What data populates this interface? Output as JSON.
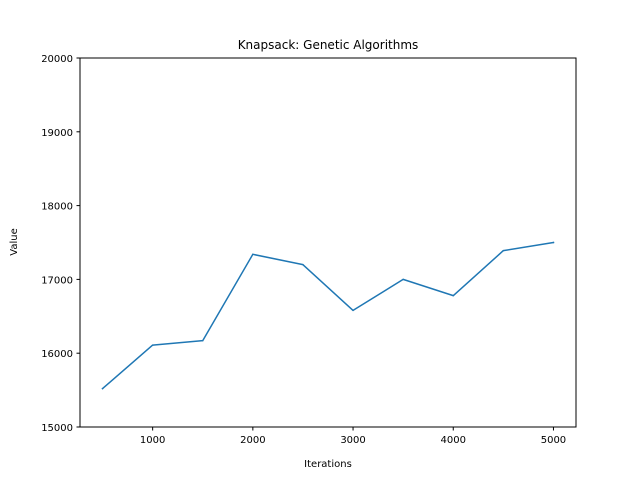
{
  "chart_data": {
    "type": "line",
    "title": "Knapsack: Genetic Algorithms",
    "xlabel": "Iterations",
    "ylabel": "Value",
    "x": [
      500,
      1000,
      1500,
      2000,
      2500,
      3000,
      3500,
      4000,
      4500,
      5000
    ],
    "series": [
      {
        "values": [
          15520,
          16110,
          16170,
          17340,
          17200,
          16580,
          17000,
          16780,
          17390,
          17500
        ],
        "color": "#1f77b4"
      }
    ],
    "xlim": [
      275,
      5225
    ],
    "ylim": [
      15000,
      20000
    ],
    "xticks": [
      1000,
      2000,
      3000,
      4000,
      5000
    ],
    "yticks": [
      15000,
      16000,
      17000,
      18000,
      19000,
      20000
    ],
    "grid": false,
    "legend": "none"
  }
}
